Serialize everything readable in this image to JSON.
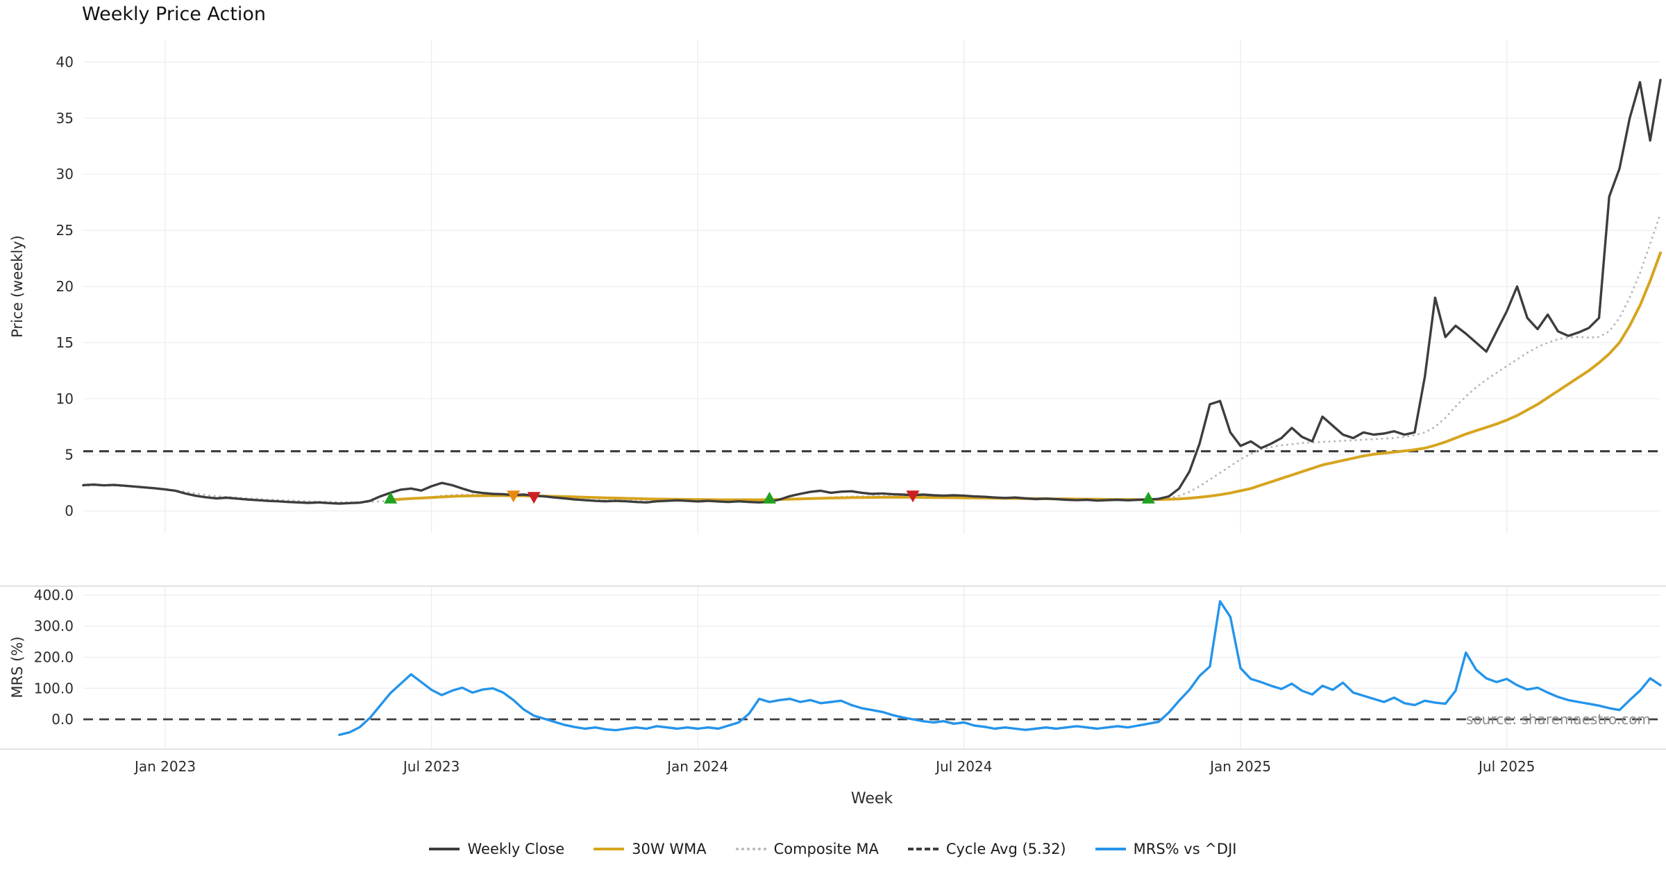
{
  "title": "Weekly Price Action",
  "source_text": "source: sharemaestro.com",
  "colors": {
    "close": "#3d3d3d",
    "wma": "#d6a41e",
    "composite": "#b8b8b8",
    "cycle": "#3d3d3d",
    "mrs": "#2494ea",
    "buy": "#21a121",
    "sell_red": "#cc2020",
    "sell_orange": "#e98a10",
    "grid": "#ededf2",
    "panel_border": "#d9d9df",
    "axis_text": "#2b2b2b",
    "source_text_color": "#8a8a8a"
  },
  "chart_data": {
    "type": "line",
    "title": "Weekly Price Action",
    "xlabel": "Week",
    "x_unit": "week_index",
    "x_range": [
      0,
      154
    ],
    "x_ticks": [
      {
        "week": 8,
        "label": "Jan 2023"
      },
      {
        "week": 34,
        "label": "Jul 2023"
      },
      {
        "week": 60,
        "label": "Jan 2024"
      },
      {
        "week": 86,
        "label": "Jul 2024"
      },
      {
        "week": 113,
        "label": "Jan 2025"
      },
      {
        "week": 139,
        "label": "Jul 2025"
      }
    ],
    "grid": true,
    "legend_position": "bottom-center",
    "price_panel": {
      "ylabel": "Price (weekly)",
      "ylim": [
        0,
        40
      ],
      "yticks": [
        0,
        5,
        10,
        15,
        20,
        25,
        30,
        35,
        40
      ],
      "cycle_avg": 5.32,
      "series": [
        {
          "id": "weekly-close",
          "name": "Weekly Close",
          "color_key": "close",
          "style": "solid",
          "width": 3.4,
          "values": [
            2.3,
            2.35,
            2.28,
            2.32,
            2.25,
            2.18,
            2.1,
            2.02,
            1.92,
            1.8,
            1.55,
            1.35,
            1.22,
            1.12,
            1.18,
            1.1,
            1.02,
            0.96,
            0.9,
            0.86,
            0.8,
            0.76,
            0.72,
            0.76,
            0.7,
            0.66,
            0.7,
            0.74,
            0.9,
            1.3,
            1.62,
            1.9,
            2.0,
            1.82,
            2.2,
            2.5,
            2.3,
            2.0,
            1.72,
            1.6,
            1.52,
            1.5,
            1.42,
            1.46,
            1.36,
            1.3,
            1.2,
            1.12,
            1.02,
            0.96,
            0.9,
            0.86,
            0.9,
            0.86,
            0.8,
            0.76,
            0.86,
            0.9,
            0.95,
            0.9,
            0.85,
            0.9,
            0.85,
            0.8,
            0.86,
            0.8,
            0.76,
            0.82,
            1.02,
            1.32,
            1.52,
            1.7,
            1.8,
            1.62,
            1.72,
            1.76,
            1.62,
            1.52,
            1.56,
            1.5,
            1.46,
            1.42,
            1.46,
            1.4,
            1.36,
            1.4,
            1.36,
            1.3,
            1.26,
            1.2,
            1.16,
            1.2,
            1.12,
            1.06,
            1.1,
            1.05,
            1.0,
            0.96,
            1.0,
            0.92,
            0.96,
            1.0,
            0.95,
            1.0,
            1.02,
            1.08,
            1.3,
            2.0,
            3.5,
            6.0,
            9.5,
            9.8,
            7.0,
            5.8,
            6.2,
            5.6,
            6.0,
            6.5,
            7.4,
            6.6,
            6.2,
            8.4,
            7.6,
            6.8,
            6.5,
            7.0,
            6.8,
            6.9,
            7.1,
            6.8,
            7.0,
            12.0,
            19.0,
            15.5,
            16.5,
            15.8,
            15.0,
            14.2,
            16.0,
            17.8,
            20.0,
            17.2,
            16.2,
            17.5,
            16.0,
            15.6,
            15.9,
            16.3,
            17.2,
            28.0,
            30.5,
            35.0,
            38.2,
            33.0,
            38.4
          ]
        },
        {
          "id": "30w-wma",
          "name": "30W WMA",
          "color_key": "wma",
          "style": "solid",
          "width": 4,
          "values": [
            null,
            null,
            null,
            null,
            null,
            null,
            null,
            null,
            null,
            null,
            null,
            null,
            null,
            null,
            null,
            null,
            null,
            null,
            null,
            null,
            null,
            null,
            null,
            null,
            null,
            null,
            null,
            null,
            null,
            null,
            1.0,
            1.05,
            1.1,
            1.15,
            1.2,
            1.25,
            1.3,
            1.33,
            1.35,
            1.36,
            1.37,
            1.37,
            1.36,
            1.35,
            1.34,
            1.32,
            1.3,
            1.28,
            1.25,
            1.22,
            1.2,
            1.17,
            1.15,
            1.12,
            1.1,
            1.08,
            1.06,
            1.05,
            1.04,
            1.03,
            1.02,
            1.01,
            1.0,
            1.0,
            1.0,
            1.0,
            1.0,
            1.01,
            1.03,
            1.05,
            1.08,
            1.1,
            1.13,
            1.15,
            1.17,
            1.19,
            1.2,
            1.21,
            1.22,
            1.22,
            1.22,
            1.22,
            1.21,
            1.2,
            1.19,
            1.18,
            1.17,
            1.16,
            1.15,
            1.14,
            1.13,
            1.12,
            1.11,
            1.1,
            1.09,
            1.08,
            1.07,
            1.06,
            1.05,
            1.04,
            1.03,
            1.02,
            1.02,
            1.01,
            1.01,
            1.02,
            1.04,
            1.08,
            1.14,
            1.22,
            1.32,
            1.45,
            1.6,
            1.8,
            2.0,
            2.3,
            2.6,
            2.9,
            3.2,
            3.5,
            3.8,
            4.1,
            4.3,
            4.5,
            4.7,
            4.9,
            5.05,
            5.15,
            5.25,
            5.35,
            5.45,
            5.6,
            5.85,
            6.15,
            6.5,
            6.85,
            7.15,
            7.45,
            7.75,
            8.1,
            8.5,
            9.0,
            9.5,
            10.1,
            10.7,
            11.3,
            11.9,
            12.5,
            13.2,
            14.0,
            15.0,
            16.5,
            18.3,
            20.5,
            23.0
          ]
        },
        {
          "id": "composite-ma",
          "name": "Composite MA",
          "color_key": "composite",
          "style": "dotted",
          "width": 3,
          "values": [
            2.25,
            2.28,
            2.27,
            2.25,
            2.22,
            2.17,
            2.1,
            2.02,
            1.94,
            1.85,
            1.7,
            1.55,
            1.42,
            1.32,
            1.25,
            1.19,
            1.13,
            1.08,
            1.03,
            0.98,
            0.94,
            0.9,
            0.86,
            0.83,
            0.81,
            0.79,
            0.78,
            0.78,
            0.8,
            0.85,
            0.92,
            1.0,
            1.08,
            1.15,
            1.25,
            1.35,
            1.42,
            1.45,
            1.45,
            1.44,
            1.42,
            1.4,
            1.38,
            1.36,
            1.34,
            1.32,
            1.28,
            1.24,
            1.2,
            1.16,
            1.12,
            1.08,
            1.05,
            1.02,
            1.0,
            0.98,
            0.97,
            0.96,
            0.95,
            0.95,
            0.94,
            0.94,
            0.93,
            0.93,
            0.92,
            0.92,
            0.93,
            0.95,
            0.98,
            1.02,
            1.07,
            1.12,
            1.17,
            1.21,
            1.25,
            1.28,
            1.3,
            1.31,
            1.32,
            1.32,
            1.32,
            1.31,
            1.3,
            1.29,
            1.28,
            1.27,
            1.26,
            1.24,
            1.22,
            1.2,
            1.18,
            1.16,
            1.14,
            1.12,
            1.1,
            1.08,
            1.06,
            1.05,
            1.03,
            1.02,
            1.01,
            1.0,
            1.0,
            1.0,
            1.01,
            1.05,
            1.15,
            1.35,
            1.7,
            2.2,
            2.8,
            3.4,
            4.0,
            4.6,
            5.1,
            5.5,
            5.7,
            5.85,
            5.95,
            6.05,
            6.1,
            6.15,
            6.2,
            6.25,
            6.3,
            6.35,
            6.4,
            6.45,
            6.5,
            6.6,
            6.75,
            7.0,
            7.5,
            8.3,
            9.3,
            10.2,
            11.0,
            11.7,
            12.3,
            12.9,
            13.5,
            14.1,
            14.6,
            15.0,
            15.3,
            15.45,
            15.5,
            15.45,
            15.5,
            16.0,
            17.2,
            19.0,
            21.2,
            23.8,
            26.5
          ]
        }
      ],
      "markers": [
        {
          "week": 30,
          "price": 1.1,
          "type": "buy"
        },
        {
          "week": 42,
          "price": 1.38,
          "type": "sell_orange"
        },
        {
          "week": 44,
          "price": 1.26,
          "type": "sell_red"
        },
        {
          "week": 67,
          "price": 1.1,
          "type": "buy"
        },
        {
          "week": 81,
          "price": 1.38,
          "type": "sell_red"
        },
        {
          "week": 104,
          "price": 1.1,
          "type": "buy"
        }
      ]
    },
    "mrs_panel": {
      "ylabel": "MRS (%)",
      "ylim": [
        -60,
        400
      ],
      "yticks": [
        0,
        100,
        200,
        300,
        400
      ],
      "zero_line": 0,
      "series": [
        {
          "id": "mrs-vs-dji",
          "name": "MRS% vs ^DJI",
          "color_key": "mrs",
          "style": "solid",
          "width": 3.4,
          "values": [
            null,
            null,
            null,
            null,
            null,
            null,
            null,
            null,
            null,
            null,
            null,
            null,
            null,
            null,
            null,
            null,
            null,
            null,
            null,
            null,
            null,
            null,
            null,
            null,
            null,
            -50,
            -42,
            -25,
            5,
            45,
            85,
            115,
            145,
            120,
            95,
            78,
            92,
            102,
            86,
            96,
            100,
            86,
            62,
            32,
            12,
            2,
            -8,
            -18,
            -25,
            -30,
            -26,
            -32,
            -35,
            -30,
            -26,
            -30,
            -22,
            -26,
            -30,
            -26,
            -30,
            -26,
            -30,
            -20,
            -10,
            18,
            66,
            56,
            62,
            66,
            56,
            62,
            52,
            56,
            60,
            46,
            36,
            30,
            24,
            14,
            6,
            0,
            -6,
            -10,
            -6,
            -14,
            -10,
            -20,
            -24,
            -30,
            -26,
            -30,
            -34,
            -30,
            -26,
            -30,
            -26,
            -22,
            -26,
            -30,
            -26,
            -22,
            -26,
            -20,
            -14,
            -8,
            22,
            60,
            95,
            140,
            170,
            380,
            330,
            165,
            130,
            120,
            108,
            98,
            115,
            92,
            80,
            108,
            95,
            118,
            86,
            76,
            66,
            56,
            70,
            52,
            46,
            60,
            54,
            50,
            92,
            215,
            160,
            132,
            120,
            130,
            110,
            96,
            102,
            86,
            72,
            62,
            56,
            50,
            44,
            36,
            30,
            62,
            92,
            132,
            110
          ]
        }
      ]
    },
    "legend": [
      {
        "label": "Weekly Close",
        "color_key": "close",
        "line": "solid"
      },
      {
        "label": "30W WMA",
        "color_key": "wma",
        "line": "solid"
      },
      {
        "label": "Composite MA",
        "color_key": "composite",
        "line": "dotted"
      },
      {
        "label": "Cycle Avg (5.32)",
        "color_key": "cycle",
        "line": "dashed"
      },
      {
        "label": "MRS% vs ^DJI",
        "color_key": "mrs",
        "line": "solid"
      }
    ]
  }
}
